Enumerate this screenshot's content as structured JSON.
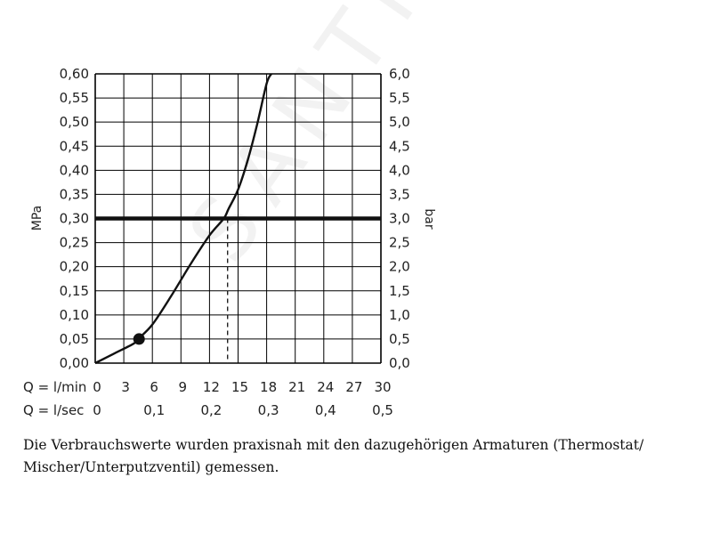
{
  "chart_data": {
    "type": "line",
    "title": "",
    "left_axis": {
      "label": "MPa",
      "ylim": [
        0,
        0.6
      ],
      "ticks": [
        "0,00",
        "0,05",
        "0,10",
        "0,15",
        "0,20",
        "0,25",
        "0,30",
        "0,35",
        "0,40",
        "0,45",
        "0,50",
        "0,55",
        "0,60"
      ]
    },
    "right_axis": {
      "label": "bar",
      "ylim": [
        0,
        6
      ],
      "ticks": [
        "0,0",
        "0,5",
        "1,0",
        "1,5",
        "2,0",
        "2,5",
        "3,0",
        "3,5",
        "4,0",
        "4,5",
        "5,0",
        "5,5",
        "6,0"
      ]
    },
    "x_axis_lmin": {
      "label": "Q = l/min",
      "xlim": [
        0,
        30
      ],
      "ticks": [
        "0",
        "3",
        "6",
        "9",
        "12",
        "15",
        "18",
        "21",
        "24",
        "27",
        "30"
      ]
    },
    "x_axis_lsec": {
      "label": "Q = l/sec",
      "ticks": [
        "0",
        "0,1",
        "0,2",
        "0,3",
        "0,4",
        "0,5"
      ]
    },
    "grid": true,
    "series": [
      {
        "x": [
          0,
          2,
          4,
          4.5,
          6,
          8,
          10,
          12,
          13.5,
          14,
          15,
          16,
          17,
          18,
          18.5
        ],
        "y": [
          0,
          0.02,
          0.04,
          0.05,
          0.08,
          0.14,
          0.205,
          0.265,
          0.3,
          0.32,
          0.36,
          0.42,
          0.495,
          0.58,
          0.6
        ]
      }
    ],
    "reference_line": {
      "y": 0.3
    },
    "drop_line": {
      "x": 13.9,
      "y": 0.3
    },
    "marker_point": {
      "x": 4.6,
      "y": 0.05
    },
    "colors": {
      "curve": "#111111",
      "grid": "#000000",
      "reference": "#111111"
    }
  },
  "caption": "Die Verbrauchswerte wurden praxisnah mit den dazugehörigen Armaturen (Thermostat/ Mischer/Unterputzventil) gemessen.",
  "watermark_text": "SANTINO"
}
